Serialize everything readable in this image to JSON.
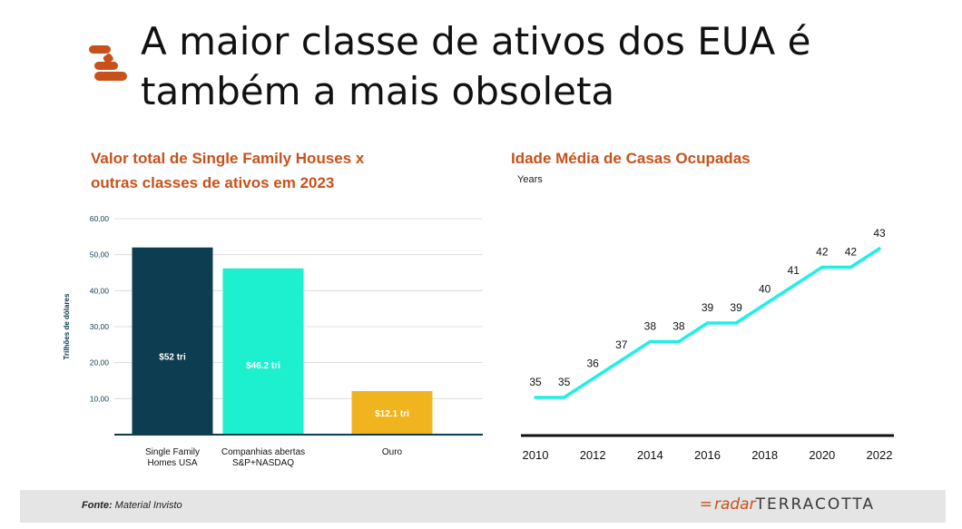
{
  "header": {
    "title_line1": "A maior classe de ativos dos EUA é",
    "title_line2": "também a mais obsoleta",
    "logo_icon": "terracotta-logo-icon",
    "accent_color": "#c8511b"
  },
  "left_chart": {
    "subtitle_line1": "Valor total de Single Family Houses x",
    "subtitle_line2": "outras classes de ativos em 2023"
  },
  "right_chart": {
    "subtitle": "Idade Média de Casas Ocupadas",
    "unit_label": "Years"
  },
  "footer": {
    "source_label": "Fonte:",
    "source_text": "Material Invisto",
    "brand_prefix": "radar",
    "brand_name": "TERRACOTTA"
  },
  "chart_data": [
    {
      "type": "bar",
      "categories": [
        "Single Family Homes USA",
        "Companhias abertas S&P+NASDAQ",
        "Ouro"
      ],
      "category_lines": [
        [
          "Single Family",
          "Homes USA"
        ],
        [
          "Companhias abertas",
          "S&P+NASDAQ"
        ],
        [
          "Ouro"
        ]
      ],
      "values": [
        52,
        46.2,
        12.1
      ],
      "data_labels": [
        "$52 tri",
        "$46.2 tri",
        "$12.1 tri"
      ],
      "colors": [
        "#0d3d50",
        "#1df0cf",
        "#f0b41e"
      ],
      "ylabel": "Trilhões de dólares",
      "ylim": [
        0,
        60
      ],
      "yticks": [
        "10,00",
        "20,00",
        "30,00",
        "40,00",
        "50,00",
        "60,00"
      ],
      "grid": true,
      "legend": "none"
    },
    {
      "type": "line",
      "x": [
        2010,
        2011,
        2012,
        2013,
        2014,
        2015,
        2016,
        2017,
        2018,
        2019,
        2020,
        2021,
        2022
      ],
      "values": [
        35,
        35,
        36,
        37,
        38,
        38,
        39,
        39,
        40,
        41,
        42,
        42,
        43
      ],
      "xticks": [
        "2010",
        "2012",
        "2014",
        "2016",
        "2018",
        "2020",
        "2022"
      ],
      "ylabel": "Years",
      "line_color": "#1ff0e6",
      "grid": false,
      "legend": "none"
    }
  ]
}
